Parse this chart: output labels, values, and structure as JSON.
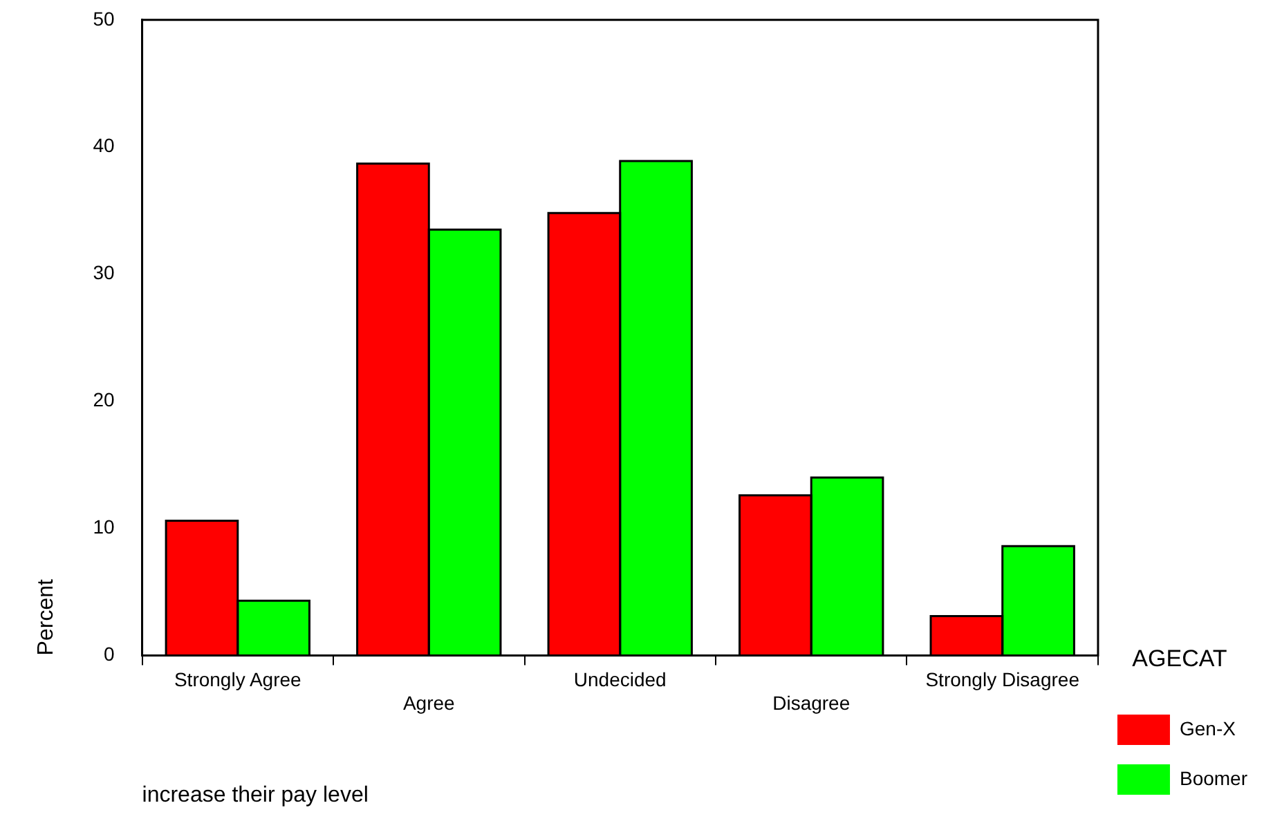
{
  "chart_data": {
    "type": "bar",
    "xlabel": "increase their pay level",
    "ylabel": "Percent",
    "legend_title": "AGECAT",
    "legend": "right",
    "categories": [
      "Strongly Agree",
      "Agree",
      "Undecided",
      "Disagree",
      "Strongly Disagree"
    ],
    "series": [
      {
        "name": "Gen-X",
        "color": "#ff0000",
        "values": [
          10.6,
          38.7,
          34.8,
          12.6,
          3.1
        ]
      },
      {
        "name": "Boomer",
        "color": "#00ff00",
        "values": [
          4.3,
          33.5,
          38.9,
          14.0,
          8.6
        ]
      }
    ],
    "ylim": [
      0,
      50
    ],
    "yticks": [
      0,
      10,
      20,
      30,
      40,
      50
    ]
  }
}
